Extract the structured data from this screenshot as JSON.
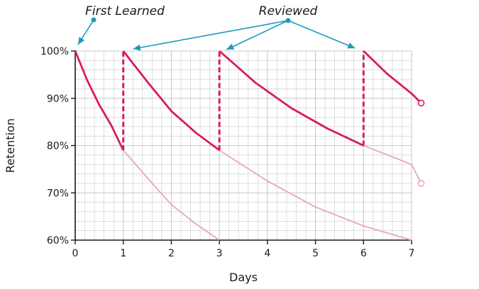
{
  "chart_data": {
    "type": "line",
    "xlabel": "Days",
    "ylabel": "Retention",
    "xlim": [
      0,
      7
    ],
    "ylim": [
      60,
      100
    ],
    "x_ticks": [
      "0",
      "1",
      "2",
      "3",
      "4",
      "5",
      "6",
      "7"
    ],
    "y_ticks": [
      "60%",
      "70%",
      "80%",
      "90%",
      "100%"
    ],
    "grid": true,
    "annotations": [
      {
        "text": "First Learned",
        "points_to_day": 0
      },
      {
        "text": "Reviewed",
        "points_to_days": [
          1,
          3,
          6
        ]
      }
    ],
    "colors": {
      "active": "#d81b60",
      "faded": "#e8a7bb",
      "arrow": "#1a9bbd",
      "grid": "#c9c9c9"
    },
    "series": [
      {
        "style": "active",
        "segments": [
          {
            "x": [
              0,
              0.25,
              0.5,
              0.75,
              1
            ],
            "y": [
              100,
              93.8,
              88.6,
              84.3,
              79
            ]
          },
          {
            "x": [
              1,
              1.5,
              2,
              2.5,
              3
            ],
            "y": [
              100,
              93.5,
              87.3,
              82.8,
              79
            ]
          },
          {
            "x": [
              3,
              3.75,
              4.5,
              5.25,
              6
            ],
            "y": [
              100,
              93.3,
              87.9,
              83.6,
              80
            ]
          },
          {
            "x": [
              6,
              6.5,
              7,
              7.2
            ],
            "y": [
              100,
              95.1,
              91.0,
              89
            ]
          }
        ]
      },
      {
        "style": "faded",
        "segments": [
          {
            "x": [
              1,
              1.5,
              2,
              2.5,
              3
            ],
            "y": [
              79,
              73.2,
              67.5,
              63.5,
              60
            ]
          },
          {
            "x": [
              3,
              4,
              5,
              6,
              7
            ],
            "y": [
              79,
              72.5,
              67,
              63,
              60
            ]
          },
          {
            "x": [
              6,
              6.5,
              7,
              7.2
            ],
            "y": [
              80,
              78,
              76,
              72
            ]
          }
        ]
      },
      {
        "style": "jump",
        "segments": [
          {
            "x": [
              1,
              1
            ],
            "y": [
              79,
              100
            ]
          },
          {
            "x": [
              3,
              3
            ],
            "y": [
              79,
              100
            ]
          },
          {
            "x": [
              6,
              6
            ],
            "y": [
              80,
              100
            ]
          }
        ]
      }
    ]
  }
}
